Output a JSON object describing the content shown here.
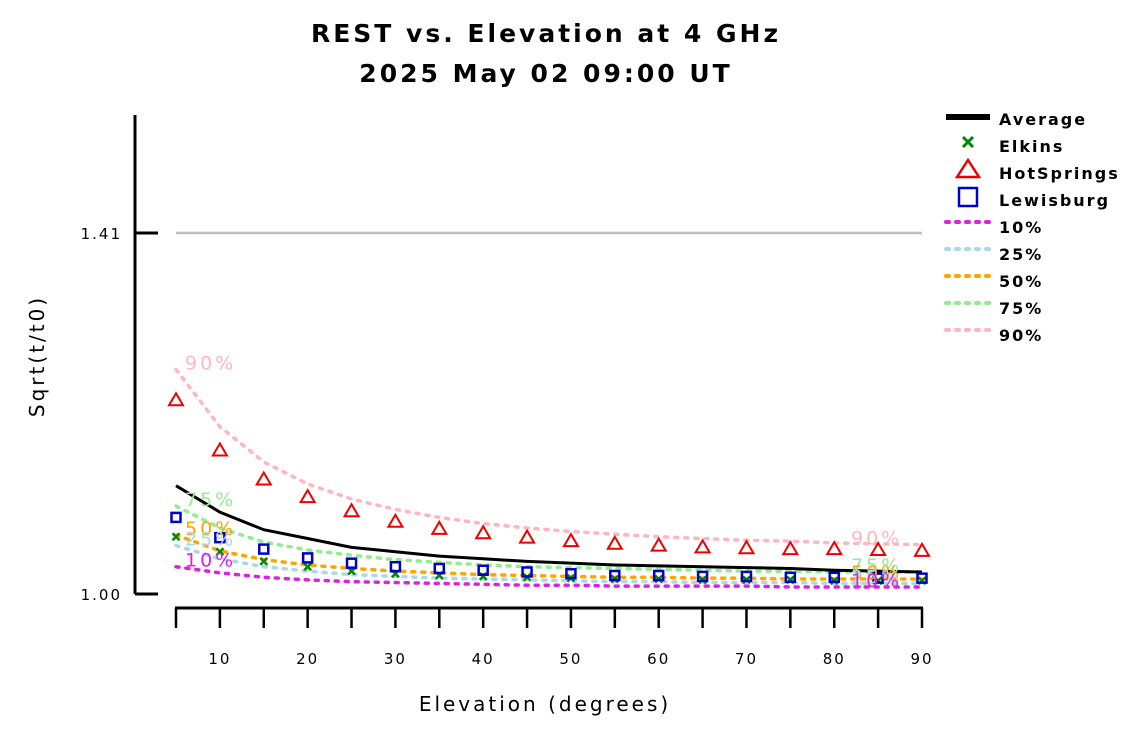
{
  "chart_data": {
    "type": "line",
    "title": "REST vs. Elevation at 4 GHz",
    "subtitle": "2025 May 02 09:00 UT",
    "xlabel": "Elevation (degrees)",
    "ylabel": "Sqrt(t/t0)",
    "xlim": [
      0,
      90
    ],
    "ylim": [
      0.99,
      1.53
    ],
    "x_ticks": [
      10,
      20,
      30,
      40,
      50,
      60,
      70,
      80,
      90
    ],
    "y_ticks": [
      {
        "value": 1.0,
        "label": "1.00"
      },
      {
        "value": 1.41,
        "label": "1.41"
      }
    ],
    "reference_line": 1.41,
    "legend_position": "right",
    "x": [
      5,
      10,
      15,
      20,
      25,
      30,
      35,
      40,
      45,
      50,
      55,
      60,
      65,
      70,
      75,
      80,
      85,
      90
    ],
    "series": [
      {
        "name": "Average",
        "style": "solid",
        "color": "#000000",
        "values": [
          1.123,
          1.093,
          1.073,
          1.063,
          1.053,
          1.048,
          1.043,
          1.04,
          1.037,
          1.035,
          1.033,
          1.032,
          1.031,
          1.03,
          1.029,
          1.027,
          1.026,
          1.025
        ]
      },
      {
        "name": "Elkins",
        "style": "x",
        "color": "#008800",
        "values": [
          1.065,
          1.048,
          1.037,
          1.031,
          1.026,
          1.023,
          1.021,
          1.02,
          1.019,
          1.018,
          1.017,
          1.017,
          1.016,
          1.016,
          1.016,
          1.015,
          1.015,
          1.015
        ]
      },
      {
        "name": "HotSprings",
        "style": "triangle",
        "color": "#ee0000",
        "values": [
          1.22,
          1.163,
          1.13,
          1.11,
          1.094,
          1.082,
          1.074,
          1.069,
          1.064,
          1.06,
          1.057,
          1.055,
          1.053,
          1.052,
          1.051,
          1.051,
          1.05,
          1.049
        ]
      },
      {
        "name": "Lewisburg",
        "style": "square",
        "color": "#0000cc",
        "values": [
          1.087,
          1.064,
          1.051,
          1.041,
          1.035,
          1.031,
          1.029,
          1.027,
          1.025,
          1.023,
          1.021,
          1.021,
          1.02,
          1.02,
          1.019,
          1.019,
          1.018,
          1.018
        ]
      },
      {
        "name": "10%",
        "style": "dotted",
        "color": "#e020e0",
        "values": [
          1.031,
          1.024,
          1.019,
          1.016,
          1.014,
          1.013,
          1.012,
          1.011,
          1.01,
          1.01,
          1.009,
          1.009,
          1.009,
          1.009,
          1.008,
          1.008,
          1.008,
          1.008
        ]
      },
      {
        "name": "25%",
        "style": "dotted",
        "color": "#add8e6",
        "values": [
          1.055,
          1.04,
          1.031,
          1.026,
          1.022,
          1.02,
          1.018,
          1.017,
          1.016,
          1.015,
          1.014,
          1.014,
          1.013,
          1.013,
          1.013,
          1.012,
          1.012,
          1.012
        ]
      },
      {
        "name": "50%",
        "style": "dotted",
        "color": "#ffa500",
        "values": [
          1.067,
          1.049,
          1.039,
          1.033,
          1.029,
          1.026,
          1.024,
          1.022,
          1.021,
          1.02,
          1.019,
          1.019,
          1.018,
          1.018,
          1.017,
          1.017,
          1.017,
          1.017
        ]
      },
      {
        "name": "75%",
        "style": "dotted",
        "color": "#90ee90",
        "values": [
          1.1,
          1.075,
          1.059,
          1.05,
          1.044,
          1.039,
          1.036,
          1.033,
          1.031,
          1.03,
          1.029,
          1.028,
          1.027,
          1.026,
          1.026,
          1.025,
          1.025,
          1.025
        ]
      },
      {
        "name": "90%",
        "style": "dotted",
        "color": "#ffb6c1",
        "values": [
          1.255,
          1.19,
          1.15,
          1.125,
          1.108,
          1.096,
          1.087,
          1.08,
          1.075,
          1.071,
          1.068,
          1.065,
          1.063,
          1.061,
          1.06,
          1.058,
          1.057,
          1.056
        ]
      }
    ],
    "percentile_labels": [
      {
        "text": "90%",
        "series": "90%"
      },
      {
        "text": "75%",
        "series": "75%"
      },
      {
        "text": "50%",
        "series": "50%"
      },
      {
        "text": "25%",
        "series": "25%"
      },
      {
        "text": "10%",
        "series": "10%"
      }
    ]
  }
}
